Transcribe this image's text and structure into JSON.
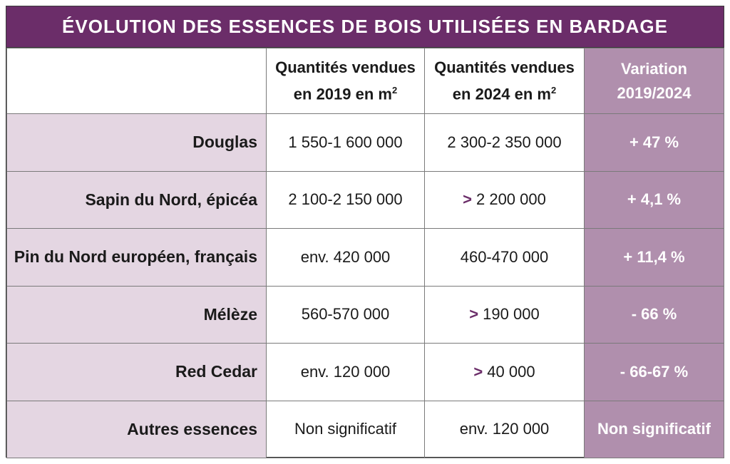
{
  "chart_data": {
    "type": "table",
    "title": "ÉVOLUTION DES ESSENCES DE BOIS UTILISÉES EN BARDAGE",
    "columns": [
      {
        "line1": "Quantités vendues",
        "line2": "en 2019 en m",
        "sup": "2"
      },
      {
        "line1": "Quantités vendues",
        "line2": "en 2024 en m",
        "sup": "2"
      },
      {
        "line1": "Variation",
        "line2": "2019/2024"
      }
    ],
    "rows": [
      {
        "name": "Douglas",
        "q2019": "1 550-1 600 000",
        "q2024_prefix": "",
        "q2024": "2 300-2 350 000",
        "variation": "+ 47 %"
      },
      {
        "name": "Sapin du Nord, épicéa",
        "q2019": "2 100-2 150 000",
        "q2024_prefix": ">",
        "q2024": "2 200 000",
        "variation": "+ 4,1 %"
      },
      {
        "name": "Pin du Nord européen, français",
        "q2019": "env. 420 000",
        "q2024_prefix": "",
        "q2024": "460-470 000",
        "variation": "+ 11,4 %"
      },
      {
        "name": "Mélèze",
        "q2019": "560-570 000",
        "q2024_prefix": ">",
        "q2024": "190 000",
        "variation": "- 66 %"
      },
      {
        "name": "Red Cedar",
        "q2019": "env. 120 000",
        "q2024_prefix": ">",
        "q2024": "40 000",
        "variation": "- 66-67 %"
      },
      {
        "name": "Autres essences",
        "q2019": "Non significatif",
        "q2024_prefix": "",
        "q2024": "env. 120 000",
        "variation": "Non significatif"
      }
    ]
  }
}
